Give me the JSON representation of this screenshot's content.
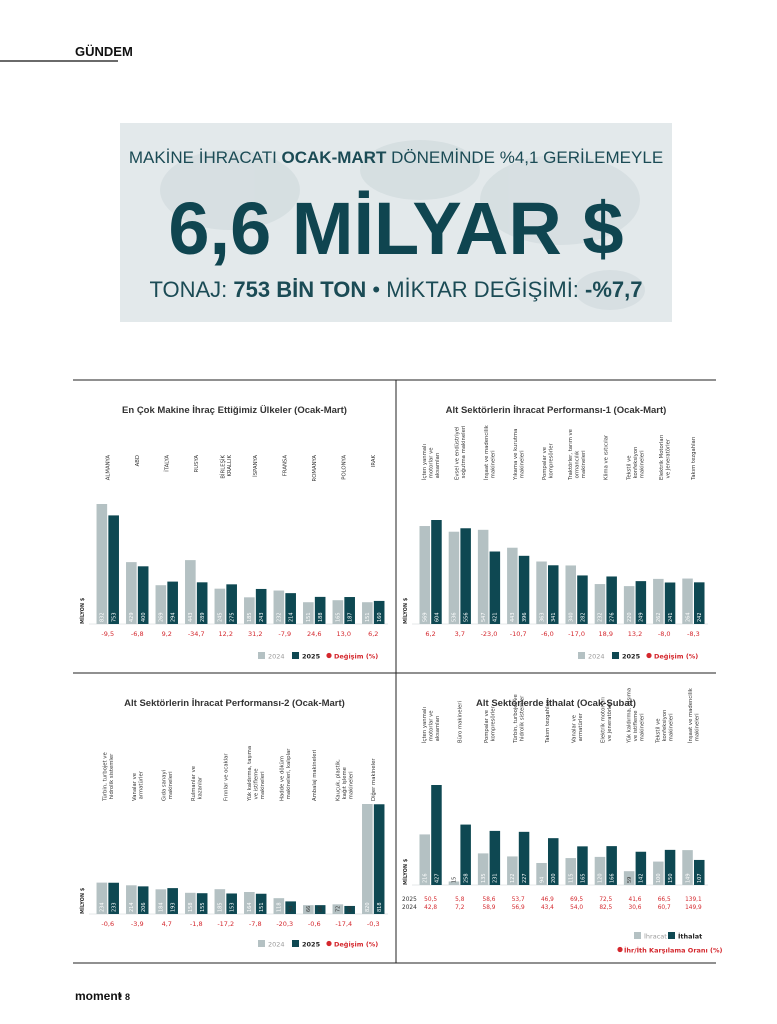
{
  "header": {
    "section": "GÜNDEM"
  },
  "banner": {
    "line1": [
      "MAKİNE İHRACATI ",
      "OCAK-MART",
      " DÖNEMİNDE %4,1 GERİLEMEYLE"
    ],
    "headline": "6,6 MİLYAR $",
    "line3": [
      "TONAJ: ",
      "753 BİN TON",
      " • MİKTAR DEĞİŞİMİ: ",
      "-%7,7"
    ]
  },
  "chart_data": [
    {
      "type": "bar",
      "title": "En Çok Makine İhraç Ettiğimiz Ülkeler (Ocak-Mart)",
      "unit_label": "MİLYON $",
      "categories": [
        "ALMANYA",
        "ABD",
        "İTALYA",
        "RUSYA",
        "BİRLEŞİK KRALLIK",
        "İSPANYA",
        "FRANSA",
        "ROMANYA",
        "POLONYA",
        "IRAK"
      ],
      "series": [
        {
          "name": "2024",
          "color": "#b4c1c3",
          "values": [
            832,
            429,
            269,
            443,
            245,
            185,
            232,
            151,
            165,
            151
          ]
        },
        {
          "name": "2025",
          "color": "#0e4852",
          "values": [
            753,
            400,
            294,
            289,
            275,
            243,
            214,
            188,
            187,
            160
          ]
        }
      ],
      "change": {
        "name": "Değişim (%)",
        "color": "#d4272d",
        "labels": [
          "-9,5",
          "-6,8",
          "9,2",
          "-34,7",
          "12,2",
          "31,2",
          "-7,9",
          "24,6",
          "13,0",
          "6,2"
        ]
      }
    },
    {
      "type": "bar",
      "title": "Alt Sektörlerin İhracat Performansı-1 (Ocak-Mart)",
      "unit_label": "MİLYON $",
      "categories": [
        "İçten yanmalı motorlar ve aksamları",
        "Evsel ve endüstriyel soğutma makineleri",
        "İnşaat ve madencilik makineleri",
        "Yıkama ve kurutma makineleri",
        "Pompalar ve kompresörler",
        "Traktörler, tarım ve ormancılık makineleri",
        "Klima ve ısıtıcılar",
        "Tekstil ve konfeksiyon makineleri",
        "Elektrik Motorları ve Jeneratörler",
        "Takım tezgahları"
      ],
      "series": [
        {
          "name": "2024",
          "color": "#b4c1c3",
          "values": [
            569,
            536,
            547,
            443,
            363,
            340,
            232,
            220,
            262,
            264
          ]
        },
        {
          "name": "2025",
          "color": "#0e4852",
          "values": [
            604,
            556,
            421,
            396,
            341,
            282,
            276,
            249,
            241,
            242
          ]
        }
      ],
      "change": {
        "name": "Değişim (%)",
        "color": "#d4272d",
        "labels": [
          "6,2",
          "3,7",
          "-23,0",
          "-10,7",
          "-6,0",
          "-17,0",
          "18,9",
          "13,2",
          "-8,0",
          "-8,3"
        ]
      }
    },
    {
      "type": "bar",
      "title": "Alt Sektörlerin İhracat Performansı-2 (Ocak-Mart)",
      "unit_label": "MİLYON $",
      "categories": [
        "Türbin, turbojet ve hidrolik sistemler",
        "Vanalar ve armatürler",
        "Gıda sanayi makineleri",
        "Rulmanlar ve kazanlar",
        "Fırınlar ve ocaklar",
        "Yük kaldırma, taşıma ve istifleme makineleri",
        "Hadde ve döküm makineleri, kalıplar",
        "Ambalaj makineleri",
        "Kauçuk, plastik, kağıt işleme makineleri",
        "Diğer makineler"
      ],
      "series": [
        {
          "name": "2024",
          "color": "#b4c1c3",
          "values": [
            234,
            214,
            184,
            158,
            185,
            164,
            118,
            66,
            72,
            820
          ]
        },
        {
          "name": "2025",
          "color": "#0e4852",
          "values": [
            233,
            206,
            193,
            155,
            153,
            151,
            94,
            66,
            60,
            818
          ]
        }
      ],
      "change": {
        "name": "Değişim (%)",
        "color": "#d4272d",
        "labels": [
          "-0,6",
          "-3,9",
          "4,7",
          "-1,8",
          "-17,2",
          "-7,8",
          "-20,3",
          "-0,6",
          "-17,4",
          "-0,3"
        ]
      }
    },
    {
      "type": "bar",
      "title": "Alt Sektörlerde İthalat (Ocak-Şubat)",
      "unit_label": "MİLYON $",
      "categories": [
        "İçten yanmalı motorlar ve aksamları",
        "Büro makineleri",
        "Pompalar ve kompresörler",
        "Türbin, turbojet ve hidrolik sistemler",
        "Takım tezgahları",
        "Vanalar ve armatürler",
        "Elektrik motorları ve jeneratörler",
        "Yük kaldırma, taşıma ve istifleme makineleri",
        "Tekstil ve konfeksiyon makineleri",
        "İnşaat ve madencilik makineleri"
      ],
      "series": [
        {
          "name": "İhracat",
          "color": "#b4c1c3",
          "values": [
            216,
            15,
            135,
            122,
            94,
            115,
            120,
            59,
            100,
            149
          ]
        },
        {
          "name": "İthalat",
          "color": "#0e4852",
          "values": [
            427,
            258,
            231,
            227,
            200,
            165,
            166,
            142,
            150,
            107
          ]
        }
      ],
      "ratio": {
        "name": "İhr/İth Karşılama Oranı (%)",
        "color": "#d4272d",
        "rows": [
          {
            "name": "2025",
            "labels": [
              "50,5",
              "5,8",
              "58,6",
              "53,7",
              "46,9",
              "69,5",
              "72,5",
              "41,6",
              "66,5",
              "139,1"
            ]
          },
          {
            "name": "2024",
            "labels": [
              "42,8",
              "7,2",
              "58,9",
              "56,9",
              "43,4",
              "54,0",
              "82,5",
              "30,6",
              "60,7",
              "149,9"
            ]
          }
        ]
      }
    }
  ],
  "footer": {
    "brand": "moment",
    "page": "8"
  }
}
